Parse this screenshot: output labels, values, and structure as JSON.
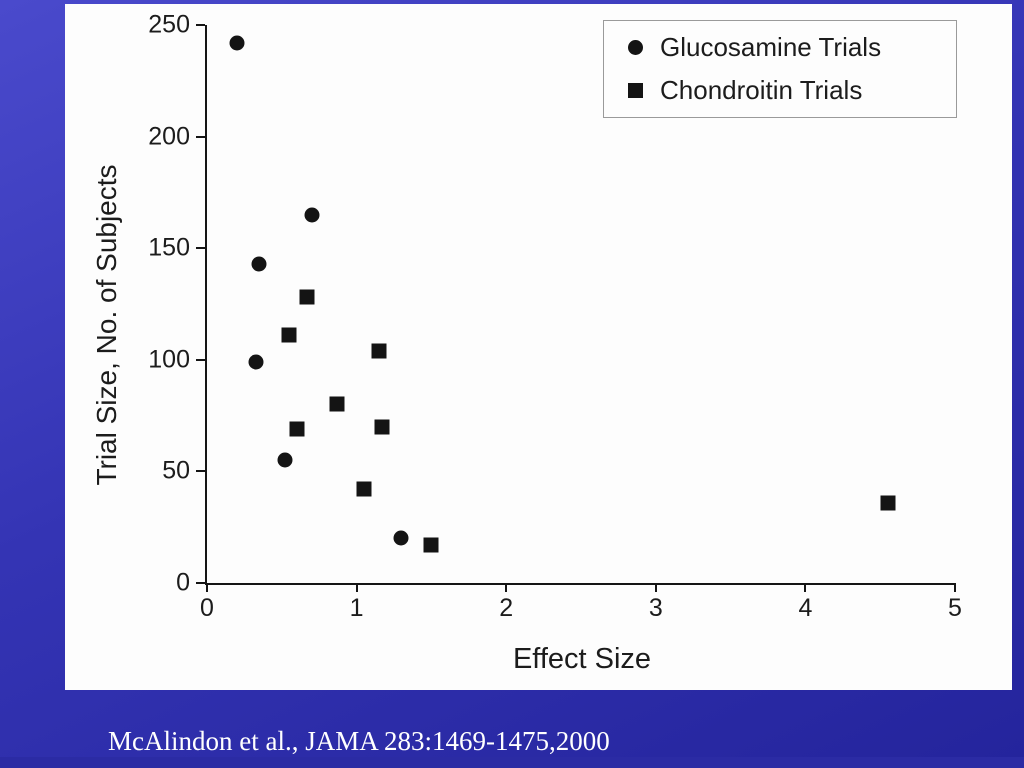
{
  "slide": {
    "citation": "McAlindon et al., JAMA 283:1469-1475,2000",
    "colors": {
      "background": "#3434b4",
      "panel": "#fdfdfd",
      "marker": "#141414",
      "citation_text": "#ffffff"
    }
  },
  "chart_data": {
    "type": "scatter",
    "title": "",
    "xlabel": "Effect Size",
    "ylabel": "Trial Size, No. of Subjects",
    "xlim": [
      0,
      5
    ],
    "ylim": [
      0,
      250
    ],
    "x_ticks": [
      0,
      1,
      2,
      3,
      4,
      5
    ],
    "y_ticks": [
      0,
      50,
      100,
      150,
      200,
      250
    ],
    "grid": false,
    "legend_position": "top-right",
    "series": [
      {
        "name": "Glucosamine Trials",
        "marker": "circle",
        "points": [
          [
            0.2,
            242
          ],
          [
            0.33,
            99
          ],
          [
            0.35,
            143
          ],
          [
            0.52,
            55
          ],
          [
            0.7,
            165
          ],
          [
            1.3,
            20
          ]
        ]
      },
      {
        "name": "Chondroitin Trials",
        "marker": "square",
        "points": [
          [
            0.55,
            111
          ],
          [
            0.6,
            69
          ],
          [
            0.67,
            128
          ],
          [
            0.87,
            80
          ],
          [
            1.05,
            42
          ],
          [
            1.15,
            104
          ],
          [
            1.17,
            70
          ],
          [
            1.5,
            17
          ],
          [
            4.55,
            36
          ]
        ]
      }
    ]
  }
}
